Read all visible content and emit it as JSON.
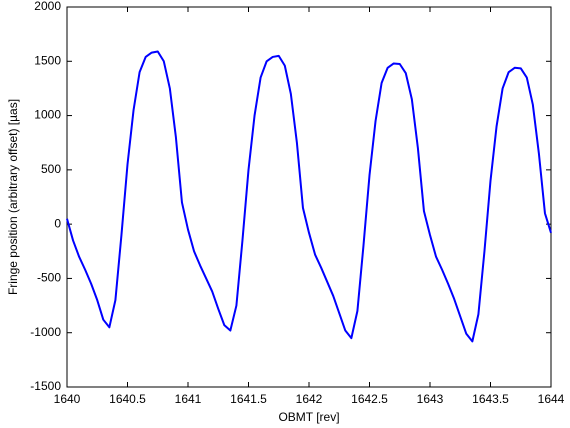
{
  "chart_data": {
    "type": "line",
    "xlabel": "OBMT [rev]",
    "ylabel": "Fringe position (arbitrary offset) [µas]",
    "x": [
      1640,
      1640.05,
      1640.1,
      1640.15,
      1640.2,
      1640.25,
      1640.3,
      1640.35,
      1640.4,
      1640.45,
      1640.5,
      1640.55,
      1640.6,
      1640.65,
      1640.7,
      1640.75,
      1640.8,
      1640.85,
      1640.9,
      1640.95,
      1641,
      1641.05,
      1641.1,
      1641.15,
      1641.2,
      1641.25,
      1641.3,
      1641.35,
      1641.4,
      1641.45,
      1641.5,
      1641.55,
      1641.6,
      1641.65,
      1641.7,
      1641.75,
      1641.8,
      1641.85,
      1641.9,
      1641.95,
      1642,
      1642.05,
      1642.1,
      1642.15,
      1642.2,
      1642.25,
      1642.3,
      1642.35,
      1642.4,
      1642.45,
      1642.5,
      1642.55,
      1642.6,
      1642.65,
      1642.7,
      1642.75,
      1642.8,
      1642.85,
      1642.9,
      1642.95,
      1643,
      1643.05,
      1643.1,
      1643.15,
      1643.2,
      1643.25,
      1643.3,
      1643.35,
      1643.4,
      1643.45,
      1643.5,
      1643.55,
      1643.6,
      1643.65,
      1643.7,
      1643.75,
      1643.8,
      1643.85,
      1643.9,
      1643.95,
      1644
    ],
    "series": [
      {
        "color": "#0000ff",
        "values": [
          50,
          -150,
          -300,
          -420,
          -550,
          -700,
          -880,
          -950,
          -700,
          -100,
          550,
          1050,
          1400,
          1540,
          1580,
          1590,
          1500,
          1250,
          800,
          200,
          -50,
          -250,
          -380,
          -500,
          -620,
          -780,
          -930,
          -980,
          -750,
          -150,
          500,
          1000,
          1350,
          1500,
          1540,
          1550,
          1460,
          1200,
          750,
          150,
          -80,
          -280,
          -400,
          -530,
          -660,
          -820,
          -980,
          -1050,
          -800,
          -200,
          450,
          950,
          1300,
          1440,
          1480,
          1475,
          1390,
          1150,
          700,
          120,
          -100,
          -300,
          -420,
          -550,
          -690,
          -850,
          -1010,
          -1080,
          -830,
          -250,
          400,
          900,
          1250,
          1400,
          1440,
          1435,
          1350,
          1100,
          650,
          100,
          -80
        ]
      }
    ],
    "xlim": [
      1640,
      1644
    ],
    "xticks": [
      1640,
      1640.5,
      1641,
      1641.5,
      1642,
      1642.5,
      1643,
      1643.5,
      1644
    ],
    "ylim": [
      -1500,
      2000
    ],
    "yticks": [
      -1500,
      -1000,
      -500,
      0,
      500,
      1000,
      1500,
      2000
    ],
    "grid": false
  }
}
